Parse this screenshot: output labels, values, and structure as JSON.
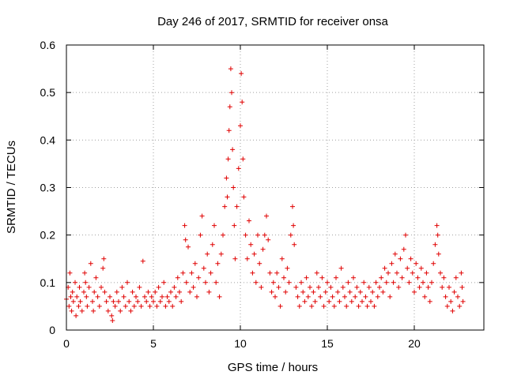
{
  "chart_data": {
    "type": "scatter",
    "title": "Day 246 of 2017, SRMTID for receiver onsa",
    "xlabel": "GPS time / hours",
    "ylabel": "SRMTID / TECUs",
    "xlim": [
      0,
      24
    ],
    "ylim": [
      0,
      0.6
    ],
    "xticks": [
      0,
      5,
      10,
      15,
      20
    ],
    "yticks": [
      0,
      0.1,
      0.2,
      0.3,
      0.4,
      0.5,
      0.6
    ],
    "xtick_labels": [
      "0",
      "5",
      "10",
      "15",
      "20"
    ],
    "ytick_labels": [
      "0",
      "0.1",
      "0.2",
      "0.3",
      "0.4",
      "0.5",
      "0.6"
    ],
    "grid": true,
    "marker": "+",
    "color": "#e00000",
    "series": [
      {
        "name": "SRMTID",
        "points": [
          [
            0.0,
            0.065
          ],
          [
            0.1,
            0.09
          ],
          [
            0.15,
            0.05
          ],
          [
            0.2,
            0.12
          ],
          [
            0.25,
            0.07
          ],
          [
            0.3,
            0.04
          ],
          [
            0.35,
            0.08
          ],
          [
            0.4,
            0.06
          ],
          [
            0.5,
            0.1
          ],
          [
            0.55,
            0.03
          ],
          [
            0.6,
            0.07
          ],
          [
            0.7,
            0.05
          ],
          [
            0.75,
            0.09
          ],
          [
            0.8,
            0.06
          ],
          [
            0.9,
            0.04
          ],
          [
            1.0,
            0.08
          ],
          [
            1.05,
            0.12
          ],
          [
            1.1,
            0.1
          ],
          [
            1.15,
            0.07
          ],
          [
            1.2,
            0.05
          ],
          [
            1.3,
            0.09
          ],
          [
            1.4,
            0.14
          ],
          [
            1.5,
            0.06
          ],
          [
            1.55,
            0.04
          ],
          [
            1.6,
            0.08
          ],
          [
            1.7,
            0.11
          ],
          [
            1.8,
            0.07
          ],
          [
            1.9,
            0.05
          ],
          [
            2.0,
            0.09
          ],
          [
            2.1,
            0.13
          ],
          [
            2.15,
            0.15
          ],
          [
            2.2,
            0.08
          ],
          [
            2.3,
            0.06
          ],
          [
            2.4,
            0.04
          ],
          [
            2.5,
            0.07
          ],
          [
            2.6,
            0.03
          ],
          [
            2.65,
            0.02
          ],
          [
            2.7,
            0.06
          ],
          [
            2.8,
            0.05
          ],
          [
            2.9,
            0.08
          ],
          [
            3.0,
            0.06
          ],
          [
            3.1,
            0.04
          ],
          [
            3.2,
            0.09
          ],
          [
            3.3,
            0.07
          ],
          [
            3.4,
            0.05
          ],
          [
            3.5,
            0.1
          ],
          [
            3.6,
            0.06
          ],
          [
            3.7,
            0.04
          ],
          [
            3.8,
            0.08
          ],
          [
            3.9,
            0.05
          ],
          [
            4.0,
            0.07
          ],
          [
            4.1,
            0.06
          ],
          [
            4.2,
            0.09
          ],
          [
            4.3,
            0.05
          ],
          [
            4.4,
            0.145
          ],
          [
            4.5,
            0.07
          ],
          [
            4.6,
            0.06
          ],
          [
            4.7,
            0.08
          ],
          [
            4.8,
            0.05
          ],
          [
            4.9,
            0.07
          ],
          [
            5.0,
            0.06
          ],
          [
            5.1,
            0.08
          ],
          [
            5.2,
            0.05
          ],
          [
            5.3,
            0.09
          ],
          [
            5.4,
            0.06
          ],
          [
            5.5,
            0.07
          ],
          [
            5.6,
            0.1
          ],
          [
            5.7,
            0.05
          ],
          [
            5.8,
            0.07
          ],
          [
            5.9,
            0.06
          ],
          [
            6.0,
            0.08
          ],
          [
            6.1,
            0.05
          ],
          [
            6.2,
            0.09
          ],
          [
            6.3,
            0.07
          ],
          [
            6.4,
            0.11
          ],
          [
            6.5,
            0.08
          ],
          [
            6.6,
            0.06
          ],
          [
            6.7,
            0.12
          ],
          [
            6.8,
            0.22
          ],
          [
            6.85,
            0.19
          ],
          [
            6.9,
            0.1
          ],
          [
            7.0,
            0.175
          ],
          [
            7.1,
            0.08
          ],
          [
            7.2,
            0.12
          ],
          [
            7.3,
            0.09
          ],
          [
            7.4,
            0.14
          ],
          [
            7.5,
            0.07
          ],
          [
            7.6,
            0.11
          ],
          [
            7.7,
            0.2
          ],
          [
            7.8,
            0.24
          ],
          [
            7.9,
            0.13
          ],
          [
            8.0,
            0.1
          ],
          [
            8.1,
            0.16
          ],
          [
            8.2,
            0.08
          ],
          [
            8.3,
            0.12
          ],
          [
            8.4,
            0.18
          ],
          [
            8.5,
            0.22
          ],
          [
            8.6,
            0.1
          ],
          [
            8.7,
            0.14
          ],
          [
            8.8,
            0.07
          ],
          [
            8.9,
            0.16
          ],
          [
            9.0,
            0.2
          ],
          [
            9.1,
            0.26
          ],
          [
            9.2,
            0.32
          ],
          [
            9.25,
            0.28
          ],
          [
            9.3,
            0.36
          ],
          [
            9.35,
            0.42
          ],
          [
            9.4,
            0.47
          ],
          [
            9.45,
            0.55
          ],
          [
            9.5,
            0.5
          ],
          [
            9.55,
            0.38
          ],
          [
            9.6,
            0.3
          ],
          [
            9.65,
            0.22
          ],
          [
            9.7,
            0.15
          ],
          [
            9.8,
            0.26
          ],
          [
            9.9,
            0.34
          ],
          [
            10.0,
            0.43
          ],
          [
            10.05,
            0.54
          ],
          [
            10.1,
            0.48
          ],
          [
            10.15,
            0.36
          ],
          [
            10.2,
            0.28
          ],
          [
            10.3,
            0.2
          ],
          [
            10.4,
            0.15
          ],
          [
            10.5,
            0.23
          ],
          [
            10.6,
            0.18
          ],
          [
            10.7,
            0.12
          ],
          [
            10.8,
            0.16
          ],
          [
            10.9,
            0.1
          ],
          [
            11.0,
            0.2
          ],
          [
            11.1,
            0.14
          ],
          [
            11.2,
            0.09
          ],
          [
            11.3,
            0.17
          ],
          [
            11.4,
            0.2
          ],
          [
            11.5,
            0.24
          ],
          [
            11.6,
            0.19
          ],
          [
            11.7,
            0.12
          ],
          [
            11.8,
            0.08
          ],
          [
            11.9,
            0.1
          ],
          [
            12.0,
            0.07
          ],
          [
            12.1,
            0.12
          ],
          [
            12.2,
            0.09
          ],
          [
            12.3,
            0.05
          ],
          [
            12.4,
            0.15
          ],
          [
            12.5,
            0.11
          ],
          [
            12.6,
            0.08
          ],
          [
            12.7,
            0.13
          ],
          [
            12.8,
            0.1
          ],
          [
            12.9,
            0.2
          ],
          [
            13.0,
            0.26
          ],
          [
            13.05,
            0.22
          ],
          [
            13.1,
            0.18
          ],
          [
            13.2,
            0.09
          ],
          [
            13.3,
            0.07
          ],
          [
            13.4,
            0.05
          ],
          [
            13.5,
            0.1
          ],
          [
            13.6,
            0.08
          ],
          [
            13.7,
            0.06
          ],
          [
            13.8,
            0.11
          ],
          [
            13.9,
            0.07
          ],
          [
            14.0,
            0.09
          ],
          [
            14.1,
            0.05
          ],
          [
            14.2,
            0.08
          ],
          [
            14.3,
            0.06
          ],
          [
            14.4,
            0.12
          ],
          [
            14.5,
            0.09
          ],
          [
            14.6,
            0.07
          ],
          [
            14.7,
            0.11
          ],
          [
            14.8,
            0.05
          ],
          [
            14.9,
            0.08
          ],
          [
            15.0,
            0.1
          ],
          [
            15.1,
            0.06
          ],
          [
            15.2,
            0.09
          ],
          [
            15.3,
            0.07
          ],
          [
            15.4,
            0.05
          ],
          [
            15.5,
            0.11
          ],
          [
            15.6,
            0.08
          ],
          [
            15.7,
            0.06
          ],
          [
            15.8,
            0.13
          ],
          [
            15.9,
            0.09
          ],
          [
            16.0,
            0.07
          ],
          [
            16.1,
            0.05
          ],
          [
            16.2,
            0.1
          ],
          [
            16.3,
            0.08
          ],
          [
            16.4,
            0.06
          ],
          [
            16.5,
            0.11
          ],
          [
            16.6,
            0.07
          ],
          [
            16.7,
            0.09
          ],
          [
            16.8,
            0.05
          ],
          [
            16.9,
            0.08
          ],
          [
            17.0,
            0.06
          ],
          [
            17.1,
            0.1
          ],
          [
            17.2,
            0.07
          ],
          [
            17.3,
            0.05
          ],
          [
            17.4,
            0.09
          ],
          [
            17.5,
            0.06
          ],
          [
            17.6,
            0.08
          ],
          [
            17.7,
            0.05
          ],
          [
            17.8,
            0.1
          ],
          [
            17.9,
            0.07
          ],
          [
            18.0,
            0.09
          ],
          [
            18.1,
            0.11
          ],
          [
            18.2,
            0.08
          ],
          [
            18.3,
            0.13
          ],
          [
            18.4,
            0.1
          ],
          [
            18.5,
            0.12
          ],
          [
            18.6,
            0.07
          ],
          [
            18.7,
            0.14
          ],
          [
            18.8,
            0.1
          ],
          [
            18.9,
            0.16
          ],
          [
            19.0,
            0.12
          ],
          [
            19.1,
            0.09
          ],
          [
            19.2,
            0.15
          ],
          [
            19.3,
            0.11
          ],
          [
            19.4,
            0.17
          ],
          [
            19.5,
            0.2
          ],
          [
            19.6,
            0.13
          ],
          [
            19.7,
            0.1
          ],
          [
            19.8,
            0.15
          ],
          [
            19.9,
            0.12
          ],
          [
            20.0,
            0.08
          ],
          [
            20.1,
            0.14
          ],
          [
            20.2,
            0.11
          ],
          [
            20.3,
            0.09
          ],
          [
            20.4,
            0.13
          ],
          [
            20.5,
            0.1
          ],
          [
            20.6,
            0.07
          ],
          [
            20.7,
            0.12
          ],
          [
            20.8,
            0.09
          ],
          [
            20.9,
            0.06
          ],
          [
            21.0,
            0.1
          ],
          [
            21.1,
            0.14
          ],
          [
            21.2,
            0.18
          ],
          [
            21.3,
            0.22
          ],
          [
            21.35,
            0.2
          ],
          [
            21.4,
            0.16
          ],
          [
            21.5,
            0.12
          ],
          [
            21.6,
            0.09
          ],
          [
            21.7,
            0.11
          ],
          [
            21.8,
            0.07
          ],
          [
            21.9,
            0.05
          ],
          [
            22.0,
            0.09
          ],
          [
            22.1,
            0.06
          ],
          [
            22.2,
            0.04
          ],
          [
            22.3,
            0.08
          ],
          [
            22.4,
            0.11
          ],
          [
            22.5,
            0.07
          ],
          [
            22.6,
            0.05
          ],
          [
            22.7,
            0.12
          ],
          [
            22.75,
            0.09
          ],
          [
            22.8,
            0.06
          ]
        ]
      }
    ]
  }
}
